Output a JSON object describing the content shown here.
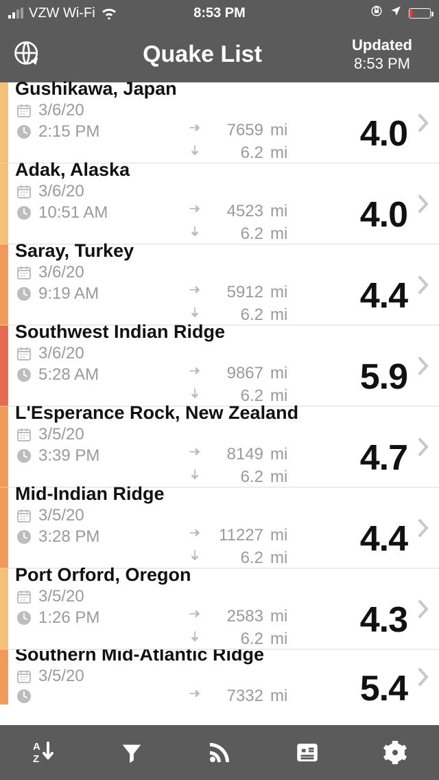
{
  "status": {
    "carrier": "VZW Wi-Fi",
    "time": "8:53 PM",
    "battery_pct": 10,
    "battery_color": "#ff3b30"
  },
  "header": {
    "title": "Quake List",
    "updated_label": "Updated",
    "updated_time": "8:53 PM"
  },
  "colors": {
    "status_bg": "#5b5b5b",
    "icon_gray": "#bdbdbd",
    "text_gray": "#9a9a9a",
    "divider": "#dcdcdc"
  },
  "severity_colors": {
    "low": "#f5c07a",
    "mid": "#f09b5a",
    "high": "#e56a50"
  },
  "quakes": [
    {
      "location": "Gushikawa, Japan",
      "date": "3/6/20",
      "time": "2:15 PM",
      "distance": "7659",
      "depth": "6.2",
      "mag": "4.0",
      "stripe": "#f5c07a"
    },
    {
      "location": "Adak, Alaska",
      "date": "3/6/20",
      "time": "10:51 AM",
      "distance": "4523",
      "depth": "6.2",
      "mag": "4.0",
      "stripe": "#f5c07a"
    },
    {
      "location": "Saray, Turkey",
      "date": "3/6/20",
      "time": "9:19 AM",
      "distance": "5912",
      "depth": "6.2",
      "mag": "4.4",
      "stripe": "#f09b5a"
    },
    {
      "location": "Southwest Indian Ridge",
      "date": "3/6/20",
      "time": "5:28 AM",
      "distance": "9867",
      "depth": "6.2",
      "mag": "5.9",
      "stripe": "#e56a50"
    },
    {
      "location": "L'Esperance Rock, New Zealand",
      "date": "3/5/20",
      "time": "3:39 PM",
      "distance": "8149",
      "depth": "6.2",
      "mag": "4.7",
      "stripe": "#f09b5a"
    },
    {
      "location": "Mid-Indian Ridge",
      "date": "3/5/20",
      "time": "3:28 PM",
      "distance": "11227",
      "depth": "6.2",
      "mag": "4.4",
      "stripe": "#f09b5a"
    },
    {
      "location": "Port Orford, Oregon",
      "date": "3/5/20",
      "time": "1:26 PM",
      "distance": "2583",
      "depth": "6.2",
      "mag": "4.3",
      "stripe": "#f5c07a"
    },
    {
      "location": "Southern Mid-Atlantic Ridge",
      "date": "3/5/20",
      "time": "",
      "distance": "7332",
      "depth": "",
      "mag": "5.4",
      "stripe": "#f09b5a"
    }
  ],
  "units": {
    "distance": "mi",
    "depth": "mi"
  },
  "tabs": [
    "sort",
    "filter",
    "feed",
    "news",
    "settings"
  ]
}
